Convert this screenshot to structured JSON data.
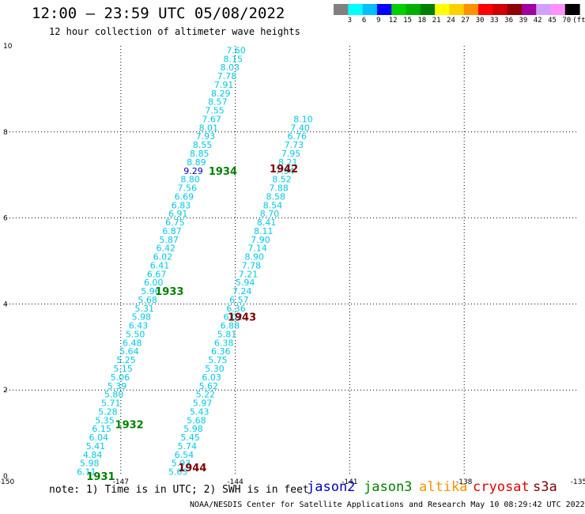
{
  "header": {
    "title": "12:00 — 23:59 UTC 05/08/2022",
    "subtitle": "12 hour collection of altimeter wave heights"
  },
  "colorbar": {
    "colors": [
      "#808080",
      "#00ffff",
      "#00c0ff",
      "#0000ff",
      "#00d000",
      "#00b000",
      "#008000",
      "#ffff00",
      "#ffd000",
      "#ff9000",
      "#ff0000",
      "#d00000",
      "#900000",
      "#a000a0",
      "#d0a0ff",
      "#ff90ff",
      "#000000"
    ],
    "labels": [
      "3",
      "6",
      "9",
      "12",
      "15",
      "18",
      "21",
      "24",
      "27",
      "30",
      "33",
      "36",
      "39",
      "42",
      "45",
      "70",
      "(ft)"
    ]
  },
  "chart_data": {
    "type": "scatter",
    "title": "12:00 — 23:59 UTC 05/08/2022",
    "subtitle": "12 hour collection of altimeter wave heights",
    "xlim": [
      -150,
      -135
    ],
    "ylim": [
      0,
      10
    ],
    "x_ticks": [
      "-150",
      "-147",
      "-144",
      "-141",
      "-138",
      "-135"
    ],
    "y_ticks": [
      "0",
      "2",
      "4",
      "6",
      "8",
      "10"
    ],
    "grid": true,
    "series": [
      {
        "name": "jason3",
        "color": "#00c8e6",
        "values": [
          [
            -147.9,
            0.1,
            "6.11"
          ],
          [
            -147.82,
            0.3,
            "5.98"
          ],
          [
            -147.74,
            0.5,
            "4.84"
          ],
          [
            -147.66,
            0.7,
            "5.41"
          ],
          [
            -147.58,
            0.9,
            "6.04"
          ],
          [
            -147.5,
            1.1,
            "6.15"
          ],
          [
            -147.42,
            1.3,
            "5.35"
          ],
          [
            -147.34,
            1.5,
            "5.28"
          ],
          [
            -147.26,
            1.7,
            "5.71"
          ],
          [
            -147.18,
            1.9,
            "5.80"
          ],
          [
            -147.1,
            2.1,
            "5.39"
          ],
          [
            -147.02,
            2.3,
            "5.06"
          ],
          [
            -146.94,
            2.5,
            "5.15"
          ],
          [
            -146.86,
            2.7,
            "5.25"
          ],
          [
            -146.78,
            2.9,
            "5.64"
          ],
          [
            -146.7,
            3.1,
            "6.48"
          ],
          [
            -146.62,
            3.3,
            "5.50"
          ],
          [
            -146.54,
            3.5,
            "6.43"
          ],
          [
            -146.46,
            3.7,
            "5.98"
          ],
          [
            -146.38,
            3.9,
            "5.31"
          ],
          [
            -146.3,
            4.1,
            "5.68"
          ],
          [
            -146.22,
            4.3,
            "5.96"
          ],
          [
            -146.14,
            4.5,
            "6.00"
          ],
          [
            -146.06,
            4.7,
            "6.67"
          ],
          [
            -145.98,
            4.9,
            "6.41"
          ],
          [
            -145.9,
            5.1,
            "6.02"
          ],
          [
            -145.82,
            5.3,
            "6.42"
          ],
          [
            -145.74,
            5.5,
            "5.87"
          ],
          [
            -145.66,
            5.7,
            "6.87"
          ],
          [
            -145.58,
            5.9,
            "6.75"
          ],
          [
            -145.5,
            6.1,
            "6.91"
          ],
          [
            -145.42,
            6.3,
            "6.83"
          ],
          [
            -145.34,
            6.5,
            "6.69"
          ],
          [
            -145.26,
            6.7,
            "7.56"
          ],
          [
            -145.18,
            6.9,
            "8.80"
          ],
          [
            -145.1,
            7.1,
            "9.29"
          ],
          [
            -145.02,
            7.3,
            "8.89"
          ],
          [
            -144.94,
            7.5,
            "8.85"
          ],
          [
            -144.86,
            7.7,
            "8.55"
          ],
          [
            -144.78,
            7.9,
            "7.93"
          ],
          [
            -144.7,
            8.1,
            "8.01"
          ],
          [
            -144.62,
            8.3,
            "7.67"
          ],
          [
            -144.54,
            8.5,
            "7.55"
          ],
          [
            -144.46,
            8.7,
            "8.57"
          ],
          [
            -144.38,
            8.9,
            "8.29"
          ],
          [
            -144.3,
            9.1,
            "7.91"
          ],
          [
            -144.22,
            9.3,
            "7.78"
          ],
          [
            -144.14,
            9.5,
            "8.03"
          ],
          [
            -144.06,
            9.7,
            "8.15"
          ],
          [
            -143.98,
            9.9,
            "7.60"
          ],
          [
            -145.5,
            0.1,
            "5.63"
          ],
          [
            -145.42,
            0.3,
            "5.93"
          ],
          [
            -145.34,
            0.5,
            "6.54"
          ],
          [
            -145.26,
            0.7,
            "5.74"
          ],
          [
            -145.18,
            0.9,
            "5.45"
          ],
          [
            -145.1,
            1.1,
            "5.98"
          ],
          [
            -145.02,
            1.3,
            "5.68"
          ],
          [
            -144.94,
            1.5,
            "5.43"
          ],
          [
            -144.86,
            1.7,
            "5.97"
          ],
          [
            -144.78,
            1.9,
            "5.22"
          ],
          [
            -144.7,
            2.1,
            "5.62"
          ],
          [
            -144.62,
            2.3,
            "6.03"
          ],
          [
            -144.54,
            2.5,
            "5.30"
          ],
          [
            -144.46,
            2.7,
            "5.75"
          ],
          [
            -144.38,
            2.9,
            "6.36"
          ],
          [
            -144.3,
            3.1,
            "6.38"
          ],
          [
            -144.22,
            3.3,
            "5.81"
          ],
          [
            -144.14,
            3.5,
            "6.88"
          ],
          [
            -144.06,
            3.7,
            "6.02"
          ],
          [
            -143.98,
            3.9,
            "6.36"
          ],
          [
            -143.9,
            4.1,
            "6.57"
          ],
          [
            -143.82,
            4.3,
            "7.24"
          ],
          [
            -143.74,
            4.5,
            "5.94"
          ],
          [
            -143.66,
            4.7,
            "7.21"
          ],
          [
            -143.58,
            4.9,
            "7.78"
          ],
          [
            -143.5,
            5.1,
            "8.90"
          ],
          [
            -143.42,
            5.3,
            "7.14"
          ],
          [
            -143.34,
            5.5,
            "7.90"
          ],
          [
            -143.26,
            5.7,
            "8.11"
          ],
          [
            -143.18,
            5.9,
            "8.41"
          ],
          [
            -143.1,
            6.1,
            "8.70"
          ],
          [
            -143.02,
            6.3,
            "8.54"
          ],
          [
            -142.94,
            6.5,
            "8.58"
          ],
          [
            -142.86,
            6.7,
            "7.88"
          ],
          [
            -142.78,
            6.9,
            "8.52"
          ],
          [
            -142.7,
            7.1,
            "7.94"
          ],
          [
            -142.62,
            7.3,
            "8.21"
          ],
          [
            -142.54,
            7.5,
            "7.95"
          ],
          [
            -142.46,
            7.7,
            "7.73"
          ],
          [
            -142.38,
            7.9,
            "6.76"
          ],
          [
            -142.3,
            8.1,
            "7.40"
          ],
          [
            -142.22,
            8.3,
            "8.10"
          ]
        ]
      }
    ],
    "time_labels": [
      {
        "text": "1931",
        "x": -147.9,
        "y": 0.0,
        "color": "#008000"
      },
      {
        "text": "1932",
        "x": -147.15,
        "y": 1.2,
        "color": "#008000"
      },
      {
        "text": "1933",
        "x": -146.1,
        "y": 4.3,
        "color": "#008000"
      },
      {
        "text": "1934",
        "x": -144.7,
        "y": 7.1,
        "color": "#008000"
      },
      {
        "text": "1942",
        "x": -143.1,
        "y": 7.15,
        "color": "#800000"
      },
      {
        "text": "1943",
        "x": -144.2,
        "y": 3.7,
        "color": "#800000"
      },
      {
        "text": "1944",
        "x": -145.5,
        "y": 0.2,
        "color": "#800000"
      }
    ]
  },
  "footer": {
    "note": "note: 1) Time is in UTC; 2) SWH is in feet",
    "credit": "NOAA/NESDIS Center for Satellite Applications and Research    May 10 08:29:42 UTC 2022",
    "legend": [
      {
        "name": "jason2",
        "color": "#0000c0"
      },
      {
        "name": "jason3",
        "color": "#008000"
      },
      {
        "name": "altika",
        "color": "#ff9000"
      },
      {
        "name": "cryosat",
        "color": "#e00000"
      },
      {
        "name": "s3a",
        "color": "#800000"
      }
    ]
  }
}
